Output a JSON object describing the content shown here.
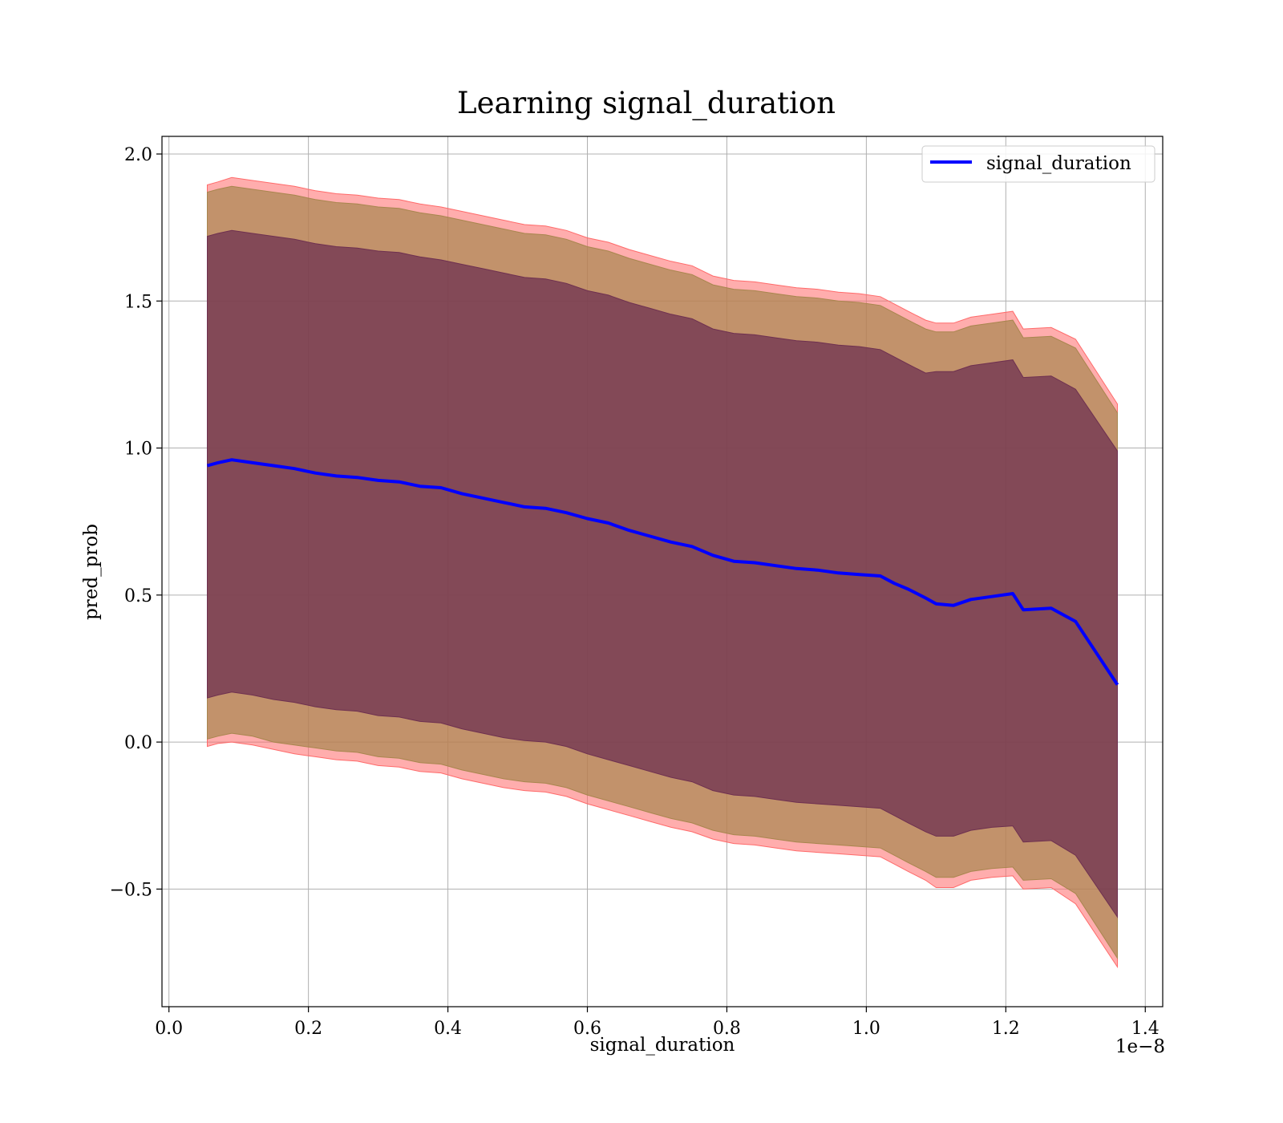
{
  "chart_data": {
    "type": "line",
    "title": "Learning signal_duration",
    "xlabel": "signal_duration",
    "ylabel": "pred_prob",
    "x_offset_label": "1e−8",
    "xlim": [
      -0.01,
      1.425
    ],
    "ylim": [
      -0.9,
      2.06
    ],
    "x_ticks": [
      0.0,
      0.2,
      0.4,
      0.6,
      0.8,
      1.0,
      1.2,
      1.4
    ],
    "x_tick_labels": [
      "0.0",
      "0.2",
      "0.4",
      "0.6",
      "0.8",
      "1.0",
      "1.2",
      "1.4"
    ],
    "y_ticks": [
      -0.5,
      0.0,
      0.5,
      1.0,
      1.5,
      2.0
    ],
    "y_tick_labels": [
      "−0.5",
      "0.0",
      "0.5",
      "1.0",
      "1.5",
      "2.0"
    ],
    "grid": true,
    "legend_position": "top-right",
    "colors": {
      "line": "#0000ff",
      "band_outer": "#ff6a6a",
      "band_middle": "#a8864e",
      "band_inner": "#6e3050",
      "grid": "#b0b0b0"
    },
    "x": [
      0.055,
      0.07,
      0.09,
      0.12,
      0.15,
      0.18,
      0.21,
      0.24,
      0.27,
      0.3,
      0.33,
      0.36,
      0.39,
      0.42,
      0.45,
      0.48,
      0.51,
      0.54,
      0.57,
      0.6,
      0.63,
      0.66,
      0.69,
      0.72,
      0.75,
      0.78,
      0.81,
      0.84,
      0.87,
      0.9,
      0.93,
      0.96,
      0.99,
      1.02,
      1.04,
      1.06,
      1.085,
      1.1,
      1.125,
      1.15,
      1.18,
      1.21,
      1.225,
      1.265,
      1.3,
      1.36
    ],
    "series": [
      {
        "name": "signal_duration",
        "values": [
          0.94,
          0.95,
          0.96,
          0.95,
          0.94,
          0.93,
          0.915,
          0.905,
          0.9,
          0.89,
          0.885,
          0.87,
          0.865,
          0.845,
          0.83,
          0.815,
          0.8,
          0.795,
          0.78,
          0.76,
          0.745,
          0.72,
          0.7,
          0.68,
          0.665,
          0.635,
          0.615,
          0.61,
          0.6,
          0.59,
          0.585,
          0.575,
          0.57,
          0.565,
          0.54,
          0.52,
          0.49,
          0.47,
          0.465,
          0.485,
          0.495,
          0.505,
          0.45,
          0.455,
          0.41,
          0.195
        ]
      }
    ],
    "bands": [
      {
        "lower": [
          -0.015,
          -0.005,
          0.0,
          -0.01,
          -0.025,
          -0.04,
          -0.05,
          -0.06,
          -0.065,
          -0.08,
          -0.085,
          -0.1,
          -0.105,
          -0.125,
          -0.14,
          -0.155,
          -0.165,
          -0.17,
          -0.185,
          -0.21,
          -0.23,
          -0.25,
          -0.27,
          -0.29,
          -0.305,
          -0.33,
          -0.345,
          -0.35,
          -0.36,
          -0.37,
          -0.375,
          -0.38,
          -0.385,
          -0.39,
          -0.415,
          -0.44,
          -0.47,
          -0.495,
          -0.495,
          -0.47,
          -0.46,
          -0.455,
          -0.5,
          -0.495,
          -0.55,
          -0.765
        ],
        "upper": [
          1.895,
          1.905,
          1.92,
          1.91,
          1.9,
          1.89,
          1.875,
          1.865,
          1.86,
          1.85,
          1.845,
          1.83,
          1.82,
          1.805,
          1.79,
          1.775,
          1.76,
          1.755,
          1.74,
          1.715,
          1.7,
          1.675,
          1.655,
          1.635,
          1.62,
          1.585,
          1.57,
          1.565,
          1.555,
          1.545,
          1.54,
          1.53,
          1.525,
          1.515,
          1.49,
          1.465,
          1.435,
          1.425,
          1.425,
          1.445,
          1.455,
          1.465,
          1.405,
          1.41,
          1.37,
          1.15
        ]
      },
      {
        "lower": [
          0.01,
          0.02,
          0.03,
          0.02,
          0.0,
          -0.01,
          -0.02,
          -0.03,
          -0.035,
          -0.05,
          -0.055,
          -0.07,
          -0.075,
          -0.095,
          -0.11,
          -0.125,
          -0.135,
          -0.14,
          -0.155,
          -0.18,
          -0.2,
          -0.22,
          -0.24,
          -0.26,
          -0.275,
          -0.3,
          -0.315,
          -0.32,
          -0.33,
          -0.34,
          -0.345,
          -0.35,
          -0.355,
          -0.36,
          -0.385,
          -0.41,
          -0.44,
          -0.46,
          -0.46,
          -0.44,
          -0.43,
          -0.425,
          -0.47,
          -0.465,
          -0.515,
          -0.735
        ],
        "upper": [
          1.87,
          1.88,
          1.89,
          1.88,
          1.87,
          1.86,
          1.845,
          1.835,
          1.83,
          1.82,
          1.815,
          1.8,
          1.79,
          1.775,
          1.76,
          1.745,
          1.73,
          1.725,
          1.71,
          1.685,
          1.67,
          1.645,
          1.625,
          1.605,
          1.59,
          1.555,
          1.54,
          1.535,
          1.525,
          1.515,
          1.51,
          1.5,
          1.495,
          1.485,
          1.46,
          1.435,
          1.405,
          1.395,
          1.395,
          1.415,
          1.425,
          1.435,
          1.375,
          1.38,
          1.34,
          1.12
        ]
      },
      {
        "lower": [
          0.15,
          0.16,
          0.17,
          0.16,
          0.145,
          0.135,
          0.12,
          0.11,
          0.105,
          0.09,
          0.085,
          0.07,
          0.065,
          0.045,
          0.03,
          0.015,
          0.005,
          0.0,
          -0.015,
          -0.04,
          -0.06,
          -0.08,
          -0.1,
          -0.12,
          -0.135,
          -0.165,
          -0.18,
          -0.185,
          -0.195,
          -0.205,
          -0.21,
          -0.215,
          -0.22,
          -0.225,
          -0.25,
          -0.275,
          -0.305,
          -0.32,
          -0.32,
          -0.3,
          -0.29,
          -0.285,
          -0.34,
          -0.335,
          -0.385,
          -0.595
        ],
        "upper": [
          1.72,
          1.73,
          1.74,
          1.73,
          1.72,
          1.71,
          1.695,
          1.685,
          1.68,
          1.67,
          1.665,
          1.65,
          1.64,
          1.625,
          1.61,
          1.595,
          1.58,
          1.575,
          1.56,
          1.535,
          1.52,
          1.495,
          1.475,
          1.455,
          1.44,
          1.405,
          1.39,
          1.385,
          1.375,
          1.365,
          1.36,
          1.35,
          1.345,
          1.335,
          1.31,
          1.285,
          1.255,
          1.26,
          1.26,
          1.28,
          1.29,
          1.3,
          1.24,
          1.245,
          1.2,
          0.99
        ]
      }
    ]
  }
}
